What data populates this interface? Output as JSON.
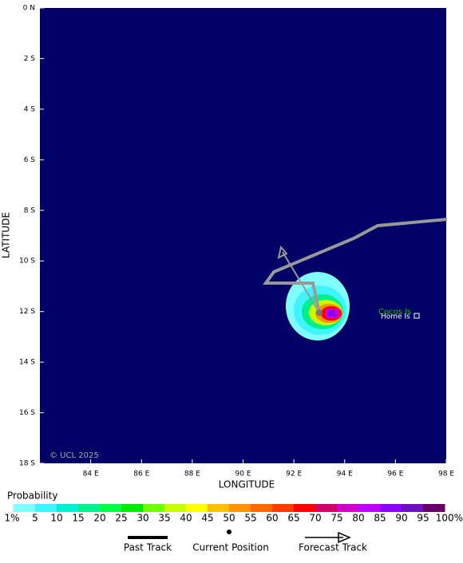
{
  "map": {
    "axis_x_title": "LONGITUDE",
    "axis_y_title": "LATITUDE",
    "xlim": [
      82,
      98
    ],
    "ylim": [
      0,
      18
    ],
    "xticks": [
      {
        "value": 84,
        "label": "84 E"
      },
      {
        "value": 86,
        "label": "86 E"
      },
      {
        "value": 88,
        "label": "88 E"
      },
      {
        "value": 90,
        "label": "90 E"
      },
      {
        "value": 92,
        "label": "92 E"
      },
      {
        "value": 94,
        "label": "94 E"
      },
      {
        "value": 96,
        "label": "96 E"
      },
      {
        "value": 98,
        "label": "98 E"
      }
    ],
    "yticks": [
      {
        "value": 0,
        "label": "0 N"
      },
      {
        "value": 2,
        "label": "2 S"
      },
      {
        "value": 4,
        "label": "4 S"
      },
      {
        "value": 6,
        "label": "6 S"
      },
      {
        "value": 8,
        "label": "8 S"
      },
      {
        "value": 10,
        "label": "10 S"
      },
      {
        "value": 12,
        "label": "12 S"
      },
      {
        "value": 14,
        "label": "14 S"
      },
      {
        "value": 16,
        "label": "16 S"
      },
      {
        "value": 18,
        "label": "18 S"
      }
    ],
    "credit": "© UCL 2025",
    "places": [
      "Cocos Is",
      "Home Is"
    ],
    "legend": {
      "title": "Probability",
      "levels": [
        {
          "value": 1,
          "label": "1%"
        },
        5,
        10,
        15,
        20,
        25,
        30,
        35,
        40,
        45,
        50,
        55,
        60,
        65,
        70,
        75,
        80,
        85,
        90,
        95,
        {
          "value": 100,
          "label": "100%"
        }
      ],
      "colors": [
        "#80ffff",
        "#40f4ff",
        "#00f0d0",
        "#00f090",
        "#00ff40",
        "#00e800",
        "#70ff00",
        "#c8ff00",
        "#ffff00",
        "#ffc000",
        "#ff9400",
        "#ff6a00",
        "#ff3c00",
        "#ff0000",
        "#d00068",
        "#d000c8",
        "#c000ff",
        "#8c00ff",
        "#6c10c0",
        "#680068"
      ]
    },
    "keys": [
      "Past Track",
      "Current Position",
      "Forecast Track"
    ]
  }
}
